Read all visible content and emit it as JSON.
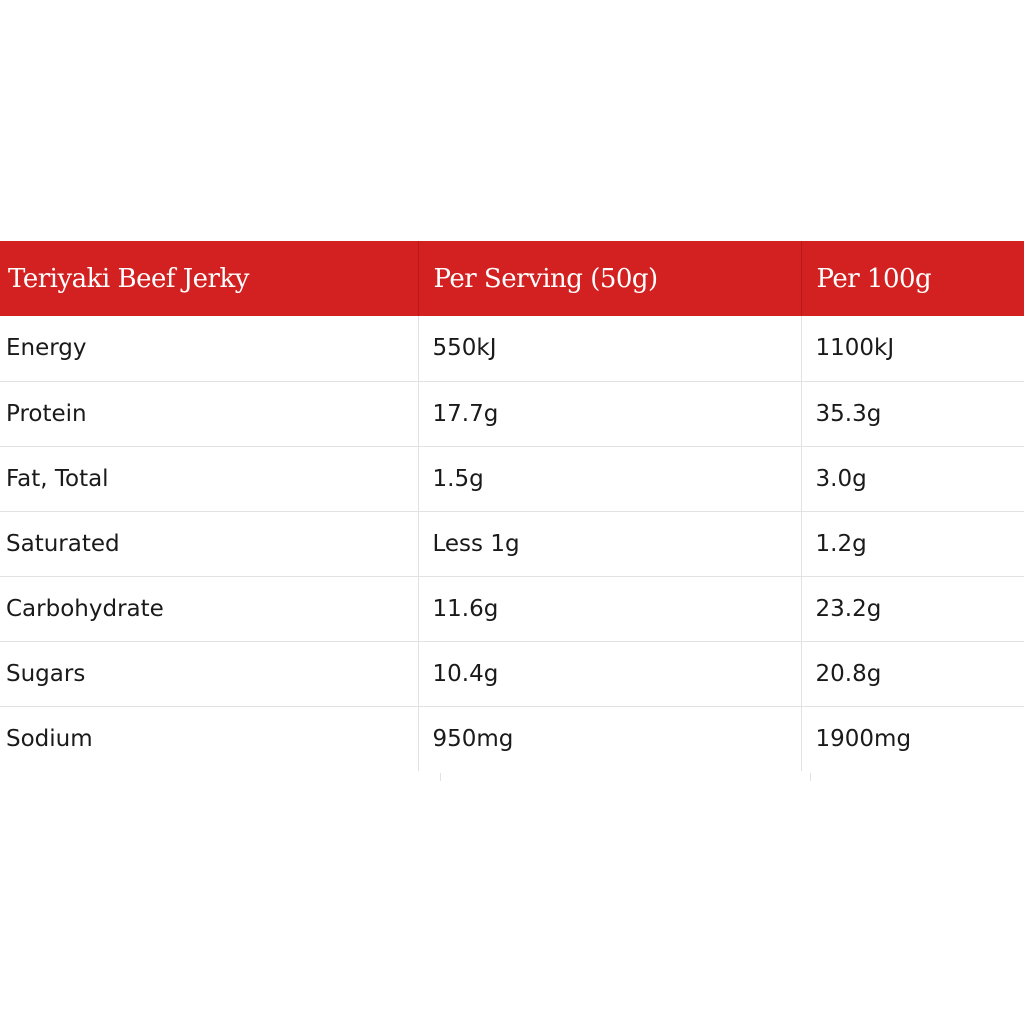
{
  "header_color": "#d32020",
  "table": {
    "headers": [
      "Teriyaki Beef Jerky",
      "Per Serving (50g)",
      "Per 100g"
    ],
    "rows": [
      [
        "Energy",
        "550kJ",
        "1100kJ"
      ],
      [
        "Protein",
        "17.7g",
        "35.3g"
      ],
      [
        "Fat, Total",
        "1.5g",
        "3.0g"
      ],
      [
        "Saturated",
        "Less 1g",
        "1.2g"
      ],
      [
        "Carbohydrate",
        "11.6g",
        "23.2g"
      ],
      [
        "Sugars",
        "10.4g",
        "20.8g"
      ],
      [
        "Sodium",
        "950mg",
        "1900mg"
      ]
    ]
  }
}
